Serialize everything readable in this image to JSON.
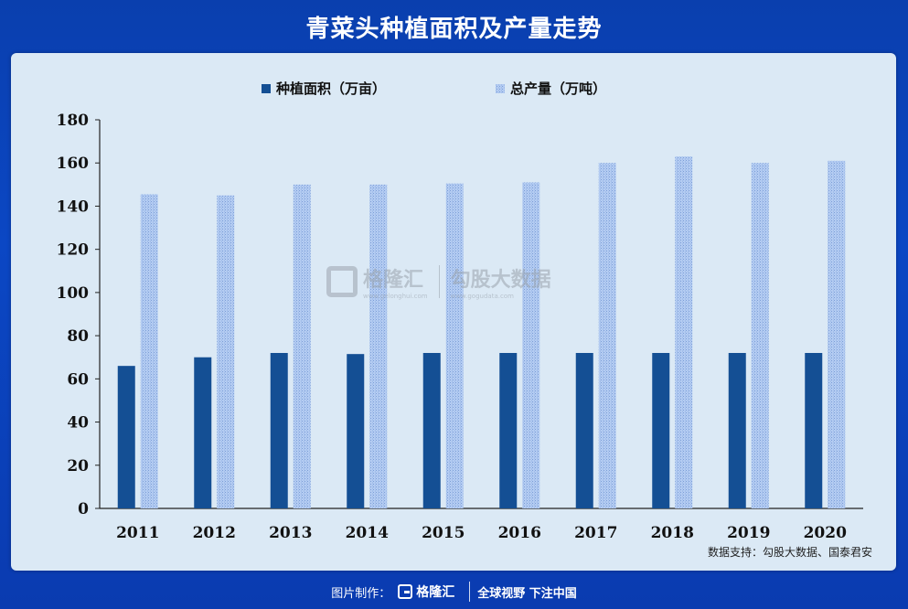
{
  "header": {
    "title": "青菜头种植面积及产量走势"
  },
  "chart_data": {
    "type": "bar",
    "title": "",
    "xlabel": "",
    "ylabel": "",
    "categories": [
      "2011",
      "2012",
      "2013",
      "2014",
      "2015",
      "2016",
      "2017",
      "2018",
      "2019",
      "2020"
    ],
    "series": [
      {
        "name": "种植面积（万亩）",
        "color": "#144f94",
        "pattern": "solid",
        "values": [
          66,
          70,
          72,
          71.5,
          72,
          72,
          72,
          72,
          72,
          72
        ]
      },
      {
        "name": "总产量（万吨）",
        "color": "#a9c4ee",
        "pattern": "dotted",
        "values": [
          145.5,
          145,
          150,
          150,
          150.5,
          151,
          160,
          163,
          160,
          161
        ]
      }
    ],
    "ylim": [
      0,
      180
    ],
    "yticks": [
      0,
      20,
      40,
      60,
      80,
      100,
      120,
      140,
      160,
      180
    ],
    "grid": false,
    "legend_position": "top-center"
  },
  "source": "数据支持：勾股大数据、国泰君安",
  "watermark": {
    "brand1": "格隆汇",
    "brand1_url": "www.gelonghui.com",
    "brand2": "勾股大数据",
    "brand2_url": "www.gogudata.com"
  },
  "footer": {
    "made_by": "图片制作：",
    "logo": "格隆汇",
    "slogan": "全球视野 下注中国"
  }
}
